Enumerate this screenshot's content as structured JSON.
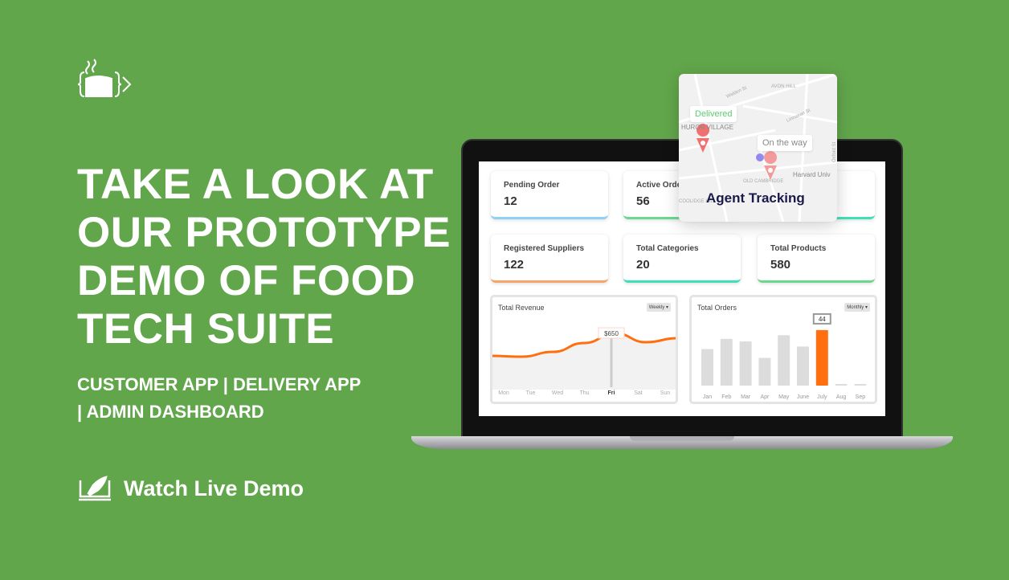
{
  "headline": [
    "TAKE A LOOK AT",
    "OUR PROTOTYPE",
    "DEMO OF FOOD",
    "TECH SUITE"
  ],
  "subtitle": [
    "CUSTOMER APP | DELIVERY APP",
    "| ADMIN DASHBOARD"
  ],
  "cta": {
    "label": "Watch Live Demo",
    "icon": "rocket-screen-icon"
  },
  "logo": {
    "icon": "steaming-box-code-logo"
  },
  "colors": {
    "background": "#62a64b",
    "accent": "#ff6f0f",
    "delivered": "#5ccc6d",
    "agent_title": "#1a1a4a"
  },
  "dashboard": {
    "cards": [
      {
        "label": "Pending Order",
        "value": "12",
        "color": "#8fd0f5"
      },
      {
        "label": "Active Orders",
        "value": "56",
        "color": "#6ad98f"
      },
      {
        "label": "",
        "value": "",
        "color": "#3fe0b8"
      },
      {
        "label": "Registered Suppliers",
        "value": "122",
        "color": "#f5a46a"
      },
      {
        "label": "Total Categories",
        "value": "20",
        "color": "#3fe0b8"
      },
      {
        "label": "Total Products",
        "value": "580",
        "color": "#6ad98f"
      }
    ]
  },
  "chart_data": [
    {
      "type": "line",
      "title": "Total Revenue",
      "filter": "Weekly",
      "categories": [
        "Mon",
        "Tue",
        "Wed",
        "Thu",
        "Fri",
        "Sat",
        "Sun"
      ],
      "values": [
        370,
        360,
        420,
        530,
        650,
        540,
        590
      ],
      "highlight": {
        "index": 4,
        "label": "$650"
      },
      "grid": false
    },
    {
      "type": "bar",
      "title": "Total Orders",
      "filter": "Monthly",
      "categories": [
        "Jan",
        "Feb",
        "Mar",
        "Apr",
        "May",
        "June",
        "July",
        "Aug",
        "Sep"
      ],
      "values": [
        29,
        37,
        35,
        22,
        40,
        31,
        44,
        0,
        0
      ],
      "highlight": {
        "index": 6,
        "label": "44"
      },
      "grid": false
    }
  ],
  "tracking": {
    "title": "Agent Tracking",
    "delivered": "Delivered",
    "on_the_way": "On the way",
    "map_labels": [
      "AVON HILL",
      "Walden St",
      "Linnaean St",
      "Oxford St",
      "OLD CAMBRIDGE",
      "Harvard Univ",
      "HURON VILLAGE",
      "COOLIDGE HILL"
    ]
  }
}
